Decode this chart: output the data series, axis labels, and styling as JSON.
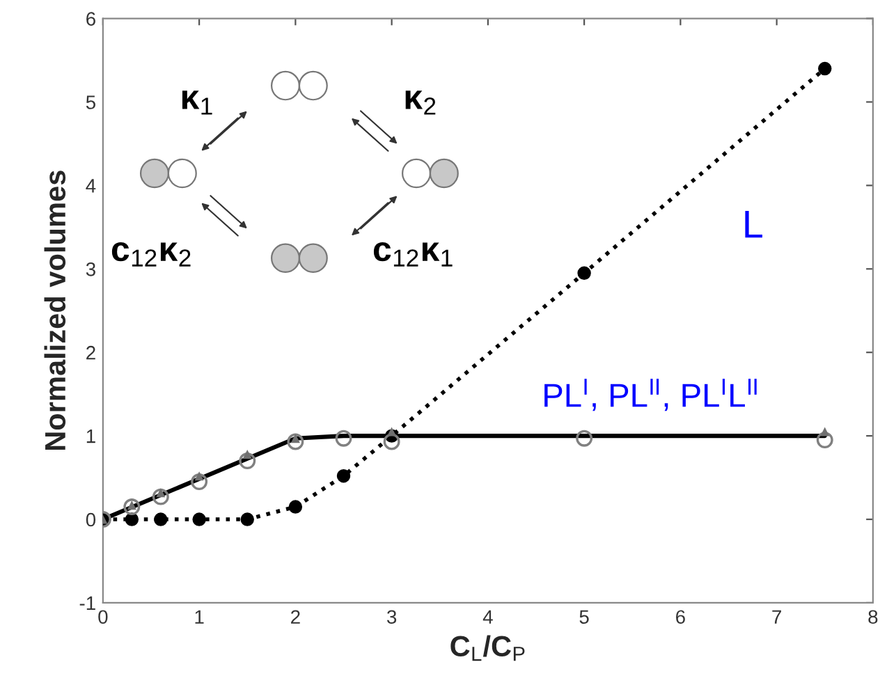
{
  "chart_data": {
    "type": "line",
    "xlabel": "C$_{L}$/C$_{P}$",
    "ylabel": "Normalized volumes",
    "series": [
      {
        "type": "line",
        "color": "#000000",
        "marker": "none",
        "line_style": "solid",
        "x": [
          0,
          2,
          2.5,
          7.5
        ],
        "values": [
          0,
          0.97,
          1.0,
          1.0
        ]
      },
      {
        "type": "scatter",
        "color": "#808080",
        "marker": "circle",
        "x": [
          0,
          0.3,
          0.6,
          1,
          1.5,
          2,
          2.5,
          3,
          5,
          7.5
        ],
        "values": [
          0,
          0.15,
          0.27,
          0.45,
          0.7,
          0.93,
          0.97,
          0.93,
          0.97,
          0.95
        ]
      },
      {
        "type": "scatter",
        "color": "#707070",
        "marker": "triangle",
        "x": [
          0,
          0.3,
          0.6,
          1,
          1.5,
          2,
          3,
          7.5
        ],
        "values": [
          0,
          0.17,
          0.32,
          0.52,
          0.78,
          0.97,
          1.05,
          1.05
        ]
      },
      {
        "type": "line",
        "color": "#000000",
        "marker": "circle",
        "line_style": "dotted",
        "x": [
          0,
          0.3,
          0.6,
          1,
          1.5,
          2,
          2.5,
          3,
          5,
          7.5
        ],
        "values": [
          0,
          0,
          0,
          0,
          0,
          0.15,
          0.52,
          1.0,
          2.95,
          5.4
        ]
      }
    ],
    "xlim": [
      0,
      8
    ],
    "ylim": [
      -1,
      6
    ],
    "xticks": [
      0,
      1,
      2,
      3,
      4,
      5,
      6,
      7,
      8
    ],
    "yticks": [
      -1,
      0,
      1,
      2,
      3,
      4,
      5,
      6
    ],
    "grid": false,
    "legend": false,
    "annotations": [
      "L",
      "PL$^{I}$, PL$^{II}$, PL$^{I}$L$^{II}$",
      "κ$_{1}$",
      "κ$_{2}$",
      "c$_{12}$κ$_{2}$",
      "c$_{12}$κ$_{1}$"
    ]
  }
}
